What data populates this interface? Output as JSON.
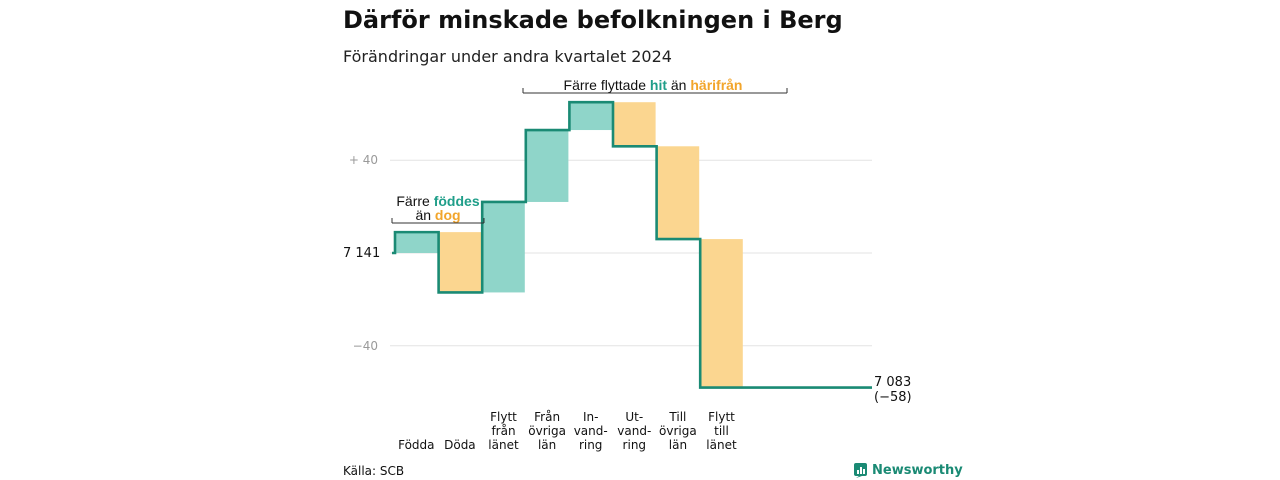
{
  "title": "Därför minskade befolkningen i Berg",
  "subtitle": "Förändringar under andra kvartalet 2024",
  "source": "Källa: SCB",
  "brand": "Newsworthy",
  "colors": {
    "increase": "#8fd5c9",
    "decrease": "#fbd690",
    "line": "#1a8a74",
    "grid": "#e3e3e3",
    "teal_text": "#1f9e89",
    "orange_text": "#f2a52b"
  },
  "annotations": {
    "births": {
      "line1_pre": "Färre ",
      "line1_hl": "föddes",
      "line2_pre": "än ",
      "line2_hl": "dog"
    },
    "moves": {
      "pre": "Färre flyttade ",
      "hl1": "hit",
      "mid": " än ",
      "hl2": "härifrån"
    }
  },
  "end_label": {
    "value": "7 083",
    "change": "(−58)"
  },
  "chart_data": {
    "type": "waterfall",
    "title": "Därför minskade befolkningen i Berg",
    "subtitle": "Förändringar under andra kvartalet 2024",
    "base_value": 7141,
    "base_label": "7 141",
    "end_value": 7083,
    "y_ticks": [
      {
        "value": 40,
        "label": "+ 40"
      },
      {
        "value": -40,
        "label": "−40"
      }
    ],
    "ylim": [
      -58,
      70
    ],
    "steps": [
      {
        "label": [
          "Födda"
        ],
        "change": 9
      },
      {
        "label": [
          "Döda"
        ],
        "change": -26
      },
      {
        "label": [
          "Flytt",
          "från",
          "länet"
        ],
        "change": 39
      },
      {
        "label": [
          "Från",
          "övriga",
          "län"
        ],
        "change": 31
      },
      {
        "label": [
          "In-",
          "vand-",
          "ring"
        ],
        "change": 12
      },
      {
        "label": [
          "Ut-",
          "vand-",
          "ring"
        ],
        "change": -19
      },
      {
        "label": [
          "Till",
          "övriga",
          "län"
        ],
        "change": -40
      },
      {
        "label": [
          "Flytt",
          "till",
          "länet"
        ],
        "change": -64
      }
    ]
  }
}
